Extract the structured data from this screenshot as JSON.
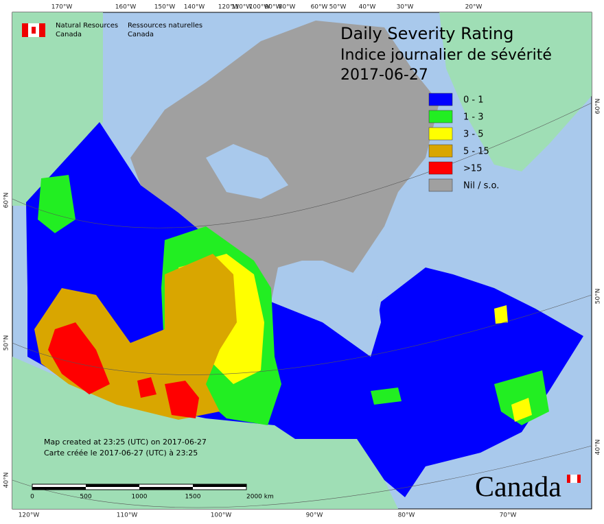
{
  "header": {
    "agency_en": [
      "Natural Resources",
      "Canada"
    ],
    "agency_fr": [
      "Ressources naturelles",
      "Canada"
    ]
  },
  "title": [
    "Daily Severity Rating",
    "Indice journalier de sévérité",
    "2017-06-27"
  ],
  "legend": [
    {
      "label": "0 - 1",
      "color": "#0000ff"
    },
    {
      "label": "1 - 3",
      "color": "#22ee22"
    },
    {
      "label": "3 - 5",
      "color": "#ffff00"
    },
    {
      "label": "5 - 15",
      "color": "#d9a600"
    },
    {
      "label": ">15",
      "color": "#ff0000"
    },
    {
      "label": "Nil / s.o.",
      "color": "#a0a0a0"
    }
  ],
  "graticule": {
    "top": [
      "170°W",
      "160°W",
      "150°W",
      "140°W",
      "120°W",
      "110°W",
      "100°W",
      "90°W",
      "80°W",
      "60°W",
      "50°W",
      "40°W",
      "30°W",
      "20°W"
    ],
    "bottom": [
      "120°W",
      "110°W",
      "100°W",
      "90°W",
      "80°W",
      "70°W"
    ],
    "left": [
      "60°N",
      "50°N",
      "40°N"
    ],
    "right": [
      "60°N",
      "50°N",
      "40°N"
    ]
  },
  "notes": [
    "Map created at 23:25 (UTC) on 2017-06-27",
    "Carte créée le 2017-06-27 (UTC) à 23:25"
  ],
  "scale_bar": [
    "0",
    "500",
    "1000",
    "1500",
    "2000  km"
  ],
  "wordmark": "Canada"
}
